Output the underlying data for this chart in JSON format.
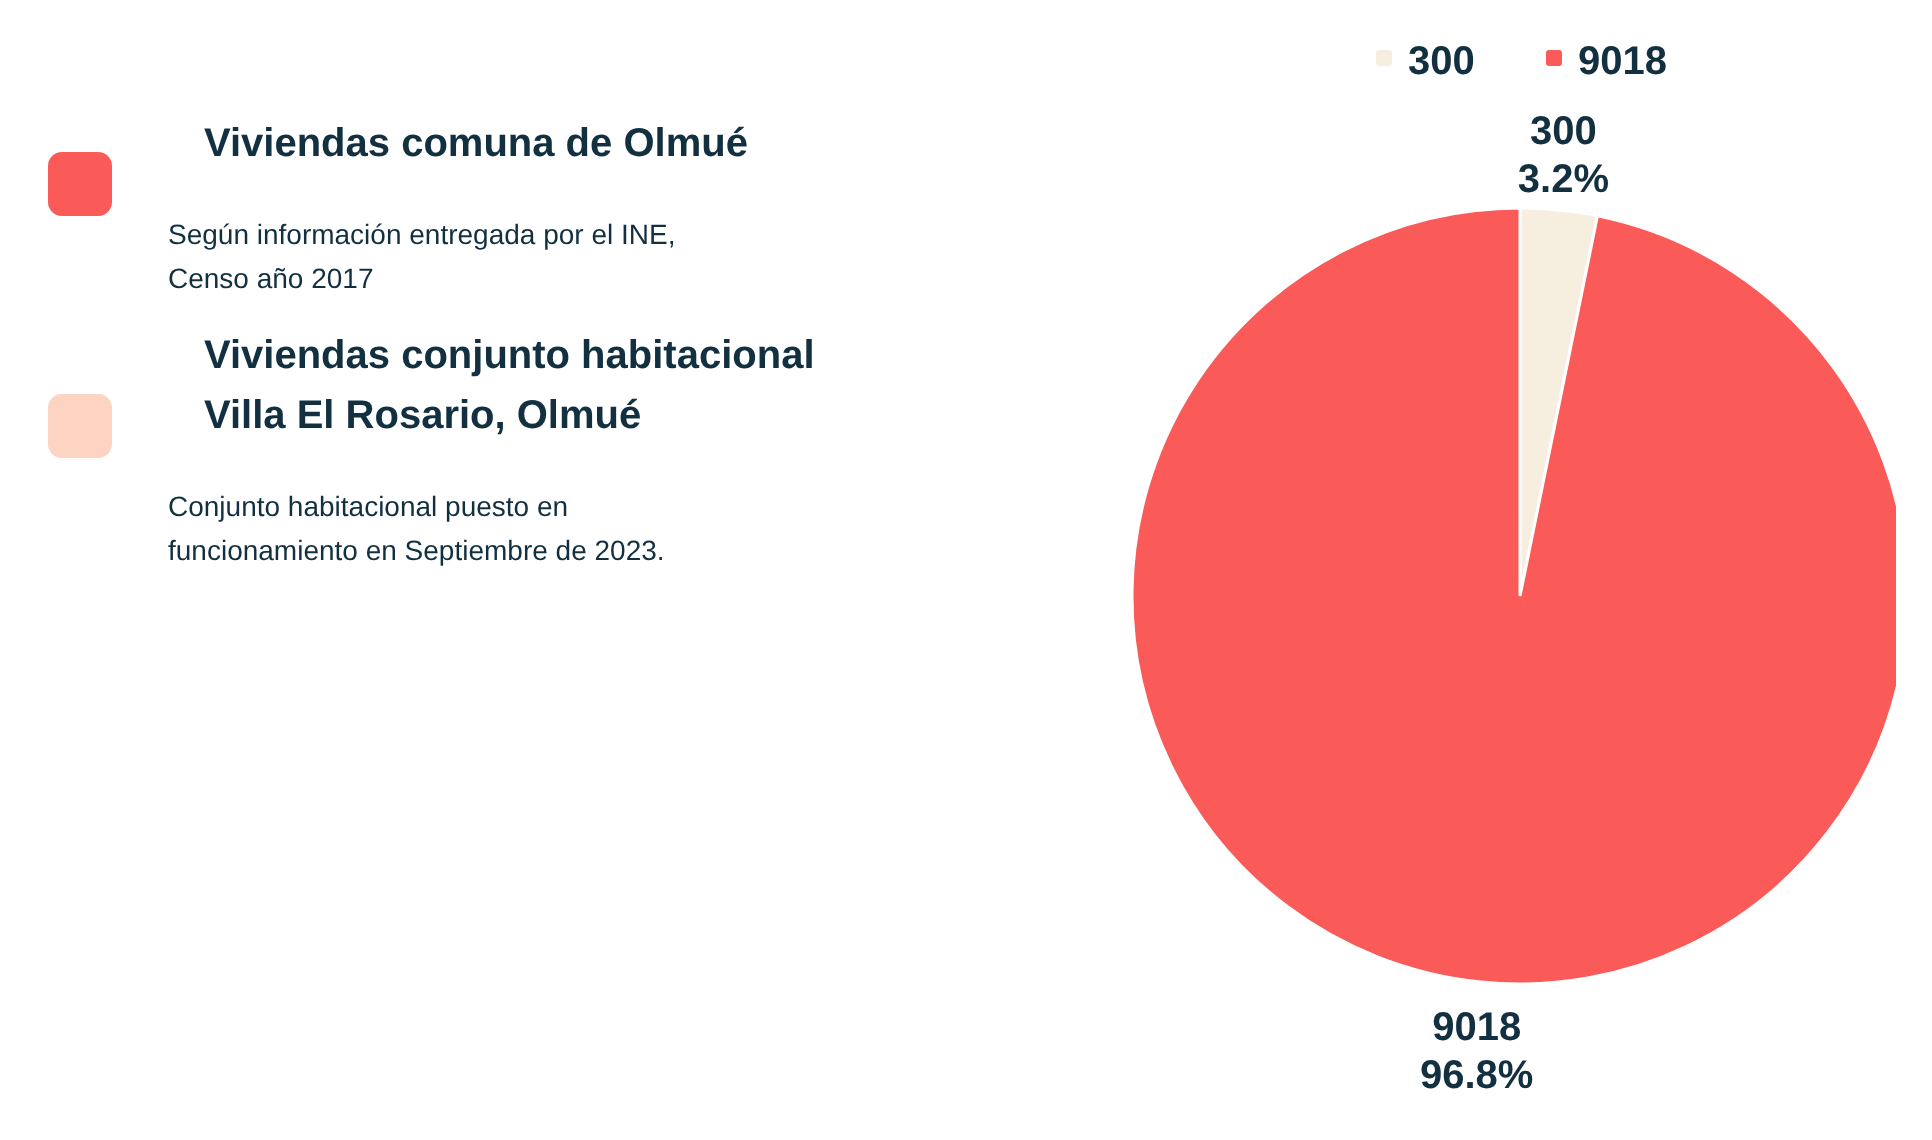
{
  "chart_data": [
    {
      "type": "pie",
      "categories": [
        "300",
        "9018"
      ],
      "values": [
        3.2,
        96.8
      ],
      "colors": [
        "#f6efe0",
        "#fa5a58"
      ],
      "value_labels": [
        "3.2%",
        "96.8%"
      ],
      "legend": "top"
    },
    {
      "type": "other",
      "categories": [
        "Viviendas comuna de Olmué",
        "Viviendas conjunto habitacional Villa El Rosario, Olmué"
      ],
      "colors": [
        "#fa5a58",
        "#fdd3c2"
      ],
      "annotations": [
        "Según información entregada por el INE, Censo año 2017",
        "Conjunto habitacional puesto en funcionamiento en Septiembre de 2023."
      ]
    }
  ]
}
